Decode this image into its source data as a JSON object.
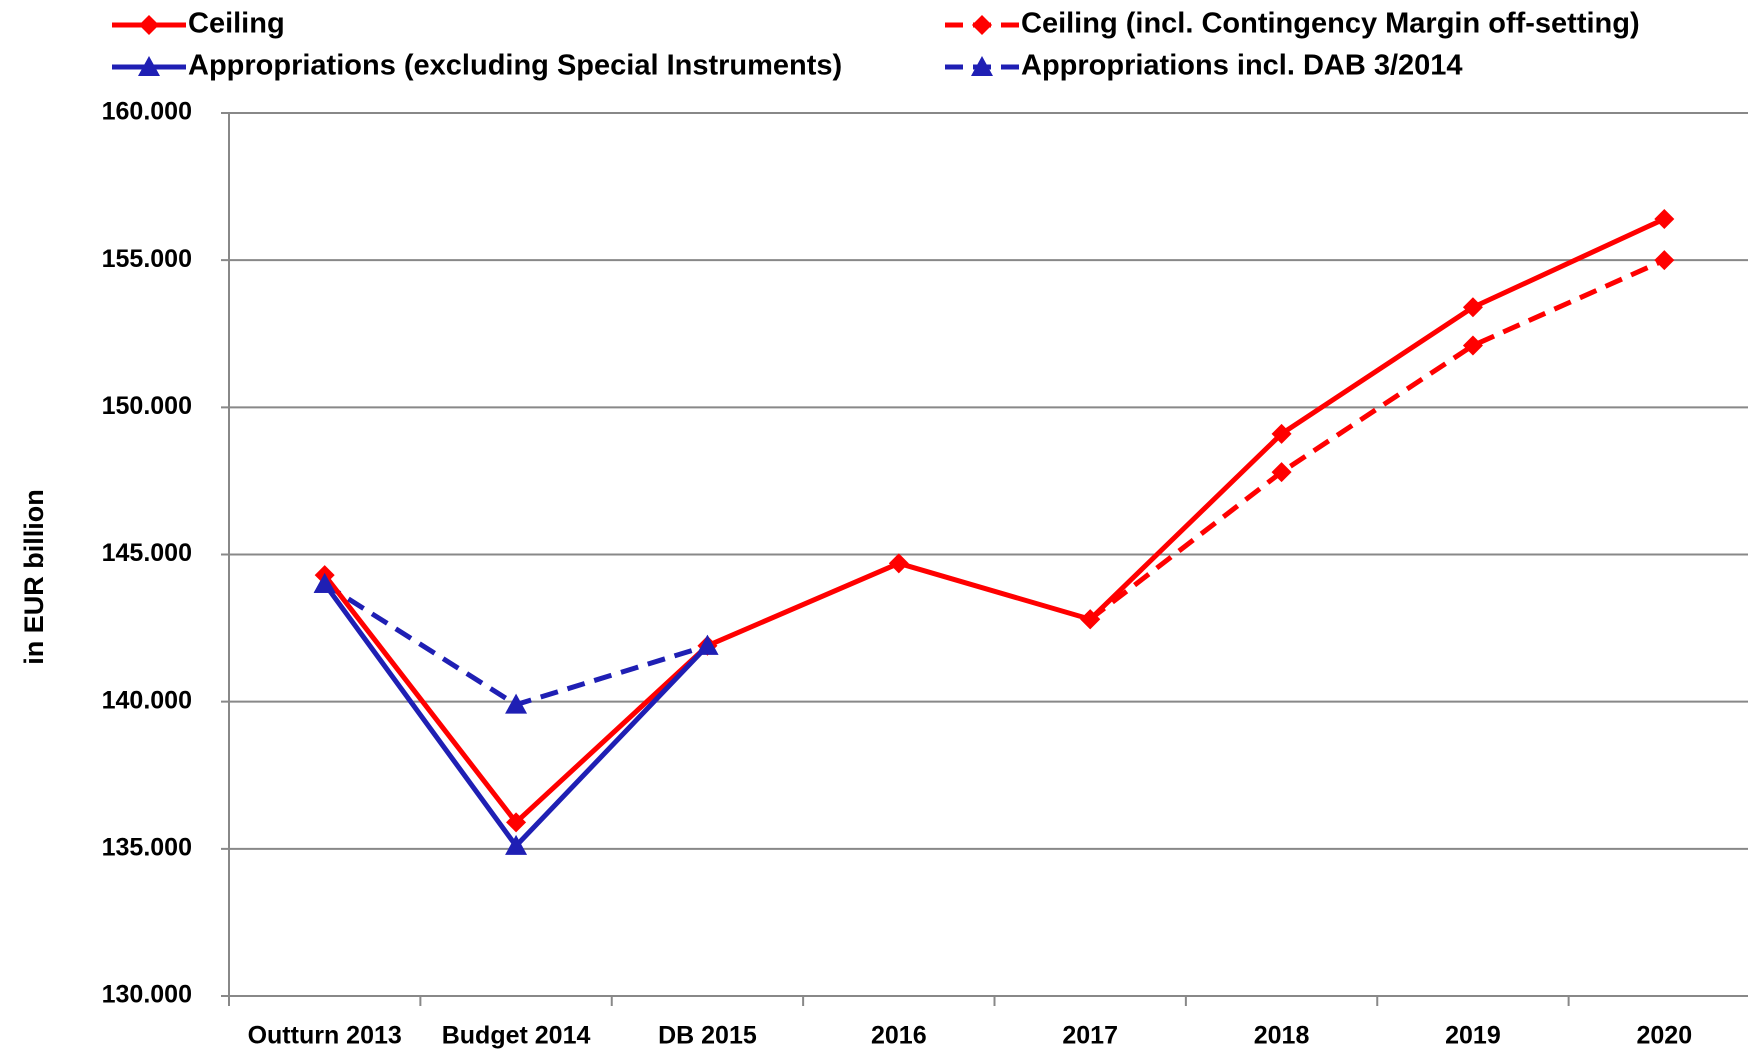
{
  "chart_data": {
    "type": "line",
    "y_label": "in EUR billion",
    "categories": [
      "Outturn 2013",
      "Budget 2014",
      "DB 2015",
      "2016",
      "2017",
      "2018",
      "2019",
      "2020"
    ],
    "ylim": [
      130000,
      160000
    ],
    "yticks": [
      {
        "value": 130000,
        "label": "130.000"
      },
      {
        "value": 135000,
        "label": "135.000"
      },
      {
        "value": 140000,
        "label": "140.000"
      },
      {
        "value": 145000,
        "label": "145.000"
      },
      {
        "value": 150000,
        "label": "150.000"
      },
      {
        "value": 155000,
        "label": "155.000"
      },
      {
        "value": 160000,
        "label": "160.000"
      }
    ],
    "grid": true,
    "series": [
      {
        "name": "Ceiling",
        "color": "#ff0000",
        "dash": false,
        "marker": "diamond",
        "values": [
          144300,
          135900,
          141900,
          144700,
          142800,
          149100,
          153400,
          156400
        ]
      },
      {
        "name": "Ceiling (incl. Contingency Margin off-setting)",
        "color": "#ff0000",
        "dash": true,
        "marker": "diamond",
        "values": [
          null,
          null,
          null,
          null,
          142800,
          147800,
          152100,
          155000
        ]
      },
      {
        "name": "Appropriations (excluding Special Instruments)",
        "color": "#1f1fb4",
        "dash": false,
        "marker": "triangle",
        "values": [
          144000,
          135100,
          141900,
          null,
          null,
          null,
          null,
          null
        ]
      },
      {
        "name": "Appropriations incl. DAB 3/2014",
        "color": "#1f1fb4",
        "dash": true,
        "marker": "triangle",
        "values": [
          144000,
          139900,
          141900,
          null,
          null,
          null,
          null,
          null
        ]
      }
    ]
  }
}
